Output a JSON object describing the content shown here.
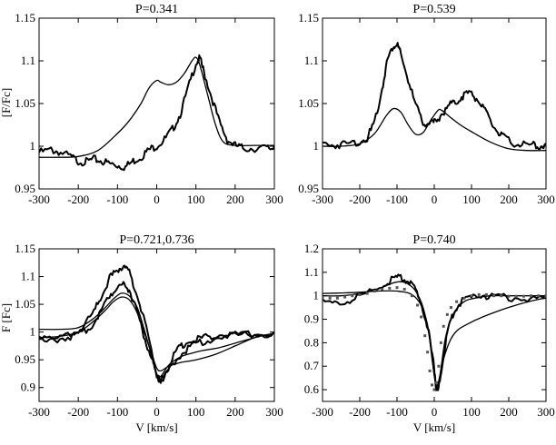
{
  "figure": {
    "ylabel_top": "[F/Fc]",
    "ylabel_bottom": "F [Fc]"
  },
  "chart_data": [
    {
      "type": "line",
      "title": "P=0.341",
      "xlabel": "",
      "ylabel": "[F/Fc]",
      "xlim": [
        -300,
        300
      ],
      "ylim": [
        0.95,
        1.15
      ],
      "xticks": [
        -300,
        -200,
        -100,
        0,
        100,
        200,
        300
      ],
      "yticks": [
        0.95,
        1,
        1.05,
        1.1,
        1.15
      ],
      "ytick_labels": [
        "0.95",
        "1",
        "1.05",
        "1.1",
        "1.15"
      ],
      "series": [
        {
          "style": "noisy",
          "width": 2,
          "x": [
            -300,
            -270,
            -250,
            -220,
            -200,
            -180,
            -160,
            -140,
            -120,
            -100,
            -80,
            -60,
            -40,
            -20,
            0,
            20,
            40,
            60,
            80,
            100,
            110,
            120,
            140,
            160,
            180,
            200,
            220,
            250,
            280,
            300
          ],
          "y": [
            0.995,
            0.998,
            0.996,
            0.99,
            0.985,
            0.984,
            0.987,
            0.985,
            0.982,
            0.98,
            0.978,
            0.985,
            0.99,
            0.998,
            1.003,
            1.01,
            1.022,
            1.04,
            1.07,
            1.1,
            1.105,
            1.09,
            1.06,
            1.03,
            1.01,
            1.003,
            1.0,
            1.0,
            1.0,
            1.0
          ]
        },
        {
          "style": "smooth",
          "width": 1.3,
          "x": [
            -300,
            -250,
            -200,
            -150,
            -100,
            -70,
            -40,
            -20,
            0,
            10,
            30,
            50,
            70,
            90,
            100,
            110,
            130,
            150,
            170,
            200,
            250,
            300
          ],
          "y": [
            0.987,
            0.987,
            0.988,
            0.995,
            1.015,
            1.03,
            1.05,
            1.068,
            1.077,
            1.075,
            1.072,
            1.075,
            1.085,
            1.1,
            1.104,
            1.095,
            1.06,
            1.025,
            1.005,
            1.001,
            1.001,
            1.001
          ]
        }
      ]
    },
    {
      "type": "line",
      "title": "P=0.539",
      "xlabel": "",
      "ylabel": "",
      "xlim": [
        -300,
        300
      ],
      "ylim": [
        0.95,
        1.15
      ],
      "xticks": [
        -300,
        -200,
        -100,
        0,
        100,
        200,
        300
      ],
      "yticks": [
        0.95,
        1,
        1.05,
        1.1,
        1.15
      ],
      "ytick_labels": [
        "0.95",
        "1",
        "1.05",
        "1.1",
        "1.15"
      ],
      "series": [
        {
          "style": "noisy",
          "width": 2,
          "x": [
            -300,
            -270,
            -240,
            -210,
            -180,
            -160,
            -140,
            -125,
            -110,
            -100,
            -90,
            -70,
            -50,
            -30,
            -10,
            0,
            20,
            40,
            60,
            80,
            100,
            120,
            140,
            160,
            180,
            200,
            230,
            260,
            280,
            300
          ],
          "y": [
            1.005,
            1.004,
            1.005,
            1.007,
            1.012,
            1.03,
            1.07,
            1.105,
            1.12,
            1.122,
            1.11,
            1.08,
            1.05,
            1.03,
            1.03,
            1.03,
            1.04,
            1.05,
            1.055,
            1.063,
            1.065,
            1.055,
            1.04,
            1.025,
            1.015,
            1.008,
            1.005,
            1.003,
            1.003,
            1.003
          ]
        },
        {
          "style": "smooth",
          "width": 1.3,
          "x": [
            -300,
            -250,
            -200,
            -160,
            -130,
            -110,
            -90,
            -70,
            -50,
            -30,
            -10,
            10,
            20,
            40,
            70,
            100,
            150,
            200,
            250,
            300
          ],
          "y": [
            1.0,
            1.0,
            1.003,
            1.015,
            1.035,
            1.044,
            1.04,
            1.025,
            1.014,
            1.016,
            1.03,
            1.042,
            1.042,
            1.035,
            1.025,
            1.017,
            1.005,
            0.997,
            0.995,
            0.995
          ]
        }
      ]
    },
    {
      "type": "line",
      "title": "P=0.721,0.736",
      "xlabel": "V [km/s]",
      "ylabel": "F [Fc]",
      "xlim": [
        -300,
        300
      ],
      "ylim": [
        0.875,
        1.15
      ],
      "xticks": [
        -300,
        -200,
        -100,
        0,
        100,
        200,
        300
      ],
      "yticks": [
        0.9,
        0.95,
        1,
        1.05,
        1.1,
        1.15
      ],
      "ytick_labels": [
        "0.9",
        "0.95",
        "1",
        "1.05",
        "1.1",
        "1.15"
      ],
      "series": [
        {
          "style": "noisy",
          "width": 2,
          "x": [
            -300,
            -260,
            -220,
            -190,
            -160,
            -140,
            -120,
            -100,
            -85,
            -70,
            -50,
            -30,
            -10,
            0,
            10,
            30,
            50,
            70,
            100,
            130,
            160,
            200,
            250,
            300
          ],
          "y": [
            0.995,
            0.99,
            0.998,
            1.01,
            1.04,
            1.07,
            1.1,
            1.115,
            1.122,
            1.11,
            1.07,
            1.02,
            0.96,
            0.925,
            0.915,
            0.94,
            0.97,
            0.982,
            0.99,
            0.995,
            0.998,
            0.999,
            1.0,
            1.0
          ]
        },
        {
          "style": "noisy",
          "width": 2,
          "x": [
            -300,
            -260,
            -220,
            -190,
            -160,
            -140,
            -120,
            -100,
            -85,
            -70,
            -50,
            -30,
            -10,
            0,
            10,
            30,
            50,
            80,
            110,
            150,
            200,
            250,
            300
          ],
          "y": [
            0.99,
            0.99,
            0.995,
            1.0,
            1.02,
            1.045,
            1.07,
            1.085,
            1.09,
            1.08,
            1.04,
            0.99,
            0.95,
            0.925,
            0.915,
            0.93,
            0.955,
            0.975,
            0.985,
            0.992,
            0.997,
            1.0,
            1.0
          ]
        },
        {
          "style": "smooth",
          "width": 1.3,
          "x": [
            -300,
            -250,
            -200,
            -160,
            -130,
            -110,
            -90,
            -70,
            -50,
            -30,
            -10,
            0,
            10,
            30,
            60,
            90,
            120,
            160,
            200,
            250,
            300
          ],
          "y": [
            1.005,
            1.005,
            1.008,
            1.025,
            1.045,
            1.06,
            1.07,
            1.065,
            1.045,
            1.0,
            0.95,
            0.925,
            0.92,
            0.94,
            0.955,
            0.962,
            0.967,
            0.972,
            0.98,
            0.99,
            0.998
          ]
        },
        {
          "style": "smooth",
          "width": 1.3,
          "x": [
            -300,
            -250,
            -200,
            -160,
            -130,
            -110,
            -90,
            -70,
            -50,
            -30,
            -10,
            0,
            10,
            30,
            60,
            100,
            150,
            200,
            250,
            300
          ],
          "y": [
            0.99,
            0.992,
            1.0,
            1.02,
            1.04,
            1.055,
            1.063,
            1.058,
            1.035,
            0.995,
            0.955,
            0.935,
            0.93,
            0.938,
            0.945,
            0.95,
            0.96,
            0.975,
            0.99,
            0.998
          ]
        }
      ]
    },
    {
      "type": "line",
      "title": "P=0.740",
      "xlabel": "V [km/s]",
      "ylabel": "",
      "xlim": [
        -300,
        300
      ],
      "ylim": [
        0.55,
        1.2
      ],
      "xticks": [
        -300,
        -200,
        -100,
        0,
        100,
        200,
        300
      ],
      "yticks": [
        0.6,
        0.7,
        0.8,
        0.9,
        1,
        1.1,
        1.2
      ],
      "ytick_labels": [
        "0.6",
        "0.7",
        "0.8",
        "0.9",
        "1",
        "1.1",
        "1.2"
      ],
      "series": [
        {
          "style": "noisy",
          "width": 2,
          "x": [
            -300,
            -260,
            -220,
            -180,
            -140,
            -110,
            -90,
            -70,
            -50,
            -30,
            -15,
            0,
            5,
            10,
            20,
            35,
            50,
            70,
            100,
            130,
            160,
            200,
            250,
            300
          ],
          "y": [
            0.98,
            0.975,
            0.99,
            1.02,
            1.05,
            1.08,
            1.085,
            1.07,
            1.03,
            0.95,
            0.85,
            0.7,
            0.62,
            0.6,
            0.7,
            0.85,
            0.93,
            0.98,
            1.0,
            1.01,
            1.005,
            1.0,
            0.995,
            1.0
          ]
        },
        {
          "style": "smooth",
          "width": 1.3,
          "x": [
            -300,
            -250,
            -200,
            -150,
            -110,
            -90,
            -70,
            -50,
            -30,
            -15,
            -5,
            5,
            15,
            30,
            50,
            80,
            110,
            150,
            200,
            250,
            300
          ],
          "y": [
            1.0,
            1.0,
            1.01,
            1.03,
            1.055,
            1.06,
            1.05,
            1.02,
            0.95,
            0.84,
            0.72,
            0.62,
            0.66,
            0.82,
            0.92,
            0.975,
            0.99,
            1.0,
            1.0,
            1.0,
            1.0
          ]
        },
        {
          "style": "smooth",
          "width": 1.3,
          "x": [
            -300,
            -250,
            -200,
            -150,
            -100,
            -60,
            -35,
            -20,
            -10,
            0,
            10,
            20,
            40,
            60,
            90,
            130,
            180,
            230,
            280,
            300
          ],
          "y": [
            1.01,
            1.012,
            1.015,
            1.02,
            1.02,
            1.005,
            0.96,
            0.89,
            0.8,
            0.66,
            0.6,
            0.7,
            0.8,
            0.85,
            0.88,
            0.91,
            0.94,
            0.965,
            0.985,
            0.99
          ]
        },
        {
          "style": "dots",
          "width": 1,
          "x": [
            -300,
            -280,
            -260,
            -240,
            -220,
            -200,
            -180,
            -160,
            -140,
            -120,
            -100,
            -80,
            -60,
            -45,
            -35,
            -25,
            -18,
            -12,
            -6,
            0,
            6,
            12,
            18,
            25,
            35,
            45,
            60,
            80,
            100,
            120,
            140,
            160,
            180,
            200,
            220,
            240,
            260,
            280,
            300
          ],
          "y": [
            0.99,
            0.99,
            0.99,
            0.995,
            1.0,
            1.005,
            1.01,
            1.02,
            1.028,
            1.032,
            1.035,
            1.028,
            1.0,
            0.96,
            0.91,
            0.83,
            0.76,
            0.68,
            0.62,
            0.6,
            0.63,
            0.7,
            0.8,
            0.87,
            0.92,
            0.95,
            0.975,
            0.99,
            1.0,
            1.005,
            1.005,
            1.0,
            1.0,
            0.998,
            0.998,
            0.998,
            1.0,
            1.0,
            1.0
          ]
        }
      ]
    }
  ]
}
